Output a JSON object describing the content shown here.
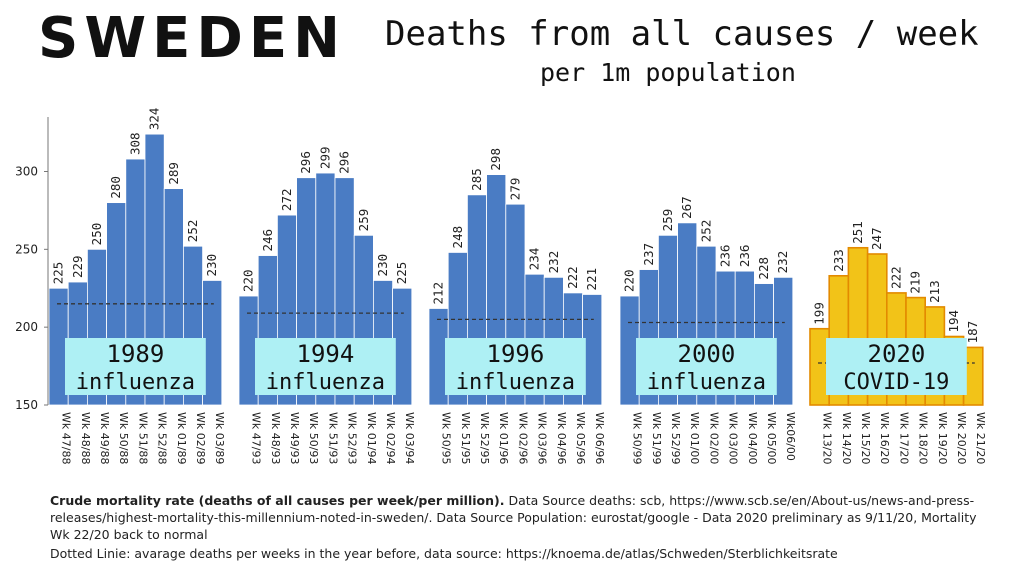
{
  "header": {
    "country": "SWEDEN",
    "title": "Deaths from all causes / week",
    "subtitle": "per 1m population"
  },
  "caption": {
    "bold": "Crude mortality rate (deaths of all causes per week/per million).",
    "text": " Data Source deaths: scb, https://www.scb.se/en/About-us/news-and-press-releases/highest-mortality-this-millennium-noted-in-sweden/. Data Source Population: eurostat/google -  Data 2020 preliminary as 9/11/20, Mortality Wk 22/20 back to normal",
    "dotted": "Dotted Linie: avarage deaths per weeks in the year before, data source: https://knoema.de/atlas/Schweden/Sterblichkeitsrate"
  },
  "colors": {
    "influenza_bar": "#4a7cc4",
    "covid_bar": "#f2c318",
    "covid_border": "#e38a00",
    "label_box": "#aef0f4"
  },
  "chart_data": {
    "type": "bar",
    "ylabel": "",
    "ylim": [
      150,
      335
    ],
    "yticks": [
      150,
      200,
      250,
      300
    ],
    "groups": [
      {
        "name": "1989 influenza",
        "label_line1": "1989",
        "label_line2": "influenza",
        "style": "influenza",
        "baseline": 215,
        "categories": [
          "Wk 47/88",
          "Wk 48/88",
          "Wk 49/88",
          "Wk 50/88",
          "Wk 51/88",
          "Wk 52/88",
          "Wk 01/89",
          "Wk 02/89",
          "Wk 03/89"
        ],
        "values": [
          225,
          229,
          250,
          280,
          308,
          324,
          289,
          252,
          230
        ]
      },
      {
        "name": "1994 influenza",
        "label_line1": "1994",
        "label_line2": "influenza",
        "style": "influenza",
        "baseline": 209,
        "categories": [
          "Wk 47/93",
          "Wk 48/93",
          "Wk 49/93",
          "Wk 50/93",
          "Wk 51/93",
          "Wk 52/93",
          "Wk 01/94",
          "Wk 02/94",
          "Wk 03/94"
        ],
        "values": [
          220,
          246,
          272,
          296,
          299,
          296,
          259,
          230,
          225
        ]
      },
      {
        "name": "1996 influenza",
        "label_line1": "1996",
        "label_line2": "influenza",
        "style": "influenza",
        "baseline": 205,
        "categories": [
          "Wk 50/95",
          "Wk 51/95",
          "Wk 52/95",
          "Wk 01/96",
          "Wk 02/96",
          "Wk 03/96",
          "Wk 04/96",
          "Wk 05/96",
          "Wk 06/96"
        ],
        "values": [
          212,
          248,
          285,
          298,
          279,
          234,
          232,
          222,
          221
        ]
      },
      {
        "name": "2000 influenza",
        "label_line1": "2000",
        "label_line2": "influenza",
        "style": "influenza",
        "baseline": 203,
        "categories": [
          "Wk 50/99",
          "Wk 51/99",
          "Wk 52/99",
          "Wk 01/00",
          "Wk 02/00",
          "Wk 03/00",
          "Wk 04/00",
          "Wk 05/00",
          "Wk06/00"
        ],
        "values": [
          220,
          237,
          259,
          267,
          252,
          236,
          236,
          228,
          232
        ]
      },
      {
        "name": "2020 COVID-19",
        "label_line1": "2020",
        "label_line2": "COVID-19",
        "style": "covid",
        "baseline": 177,
        "categories": [
          "Wk 13/20",
          "Wk 14/20",
          "Wk 15/20",
          "Wk 16/20",
          "Wk 17/20",
          "Wk 18/20",
          "Wk 19/20",
          "Wk 20/20",
          "Wk 21/20"
        ],
        "values": [
          199,
          233,
          251,
          247,
          222,
          219,
          213,
          194,
          187
        ]
      }
    ]
  }
}
